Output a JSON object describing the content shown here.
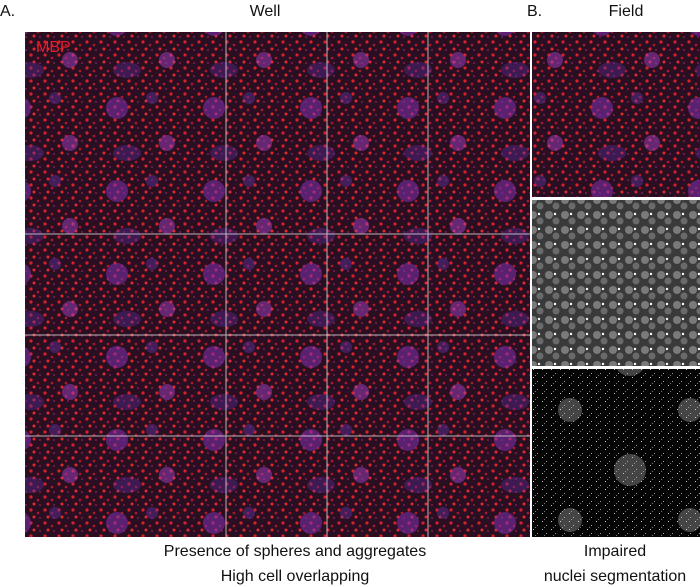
{
  "panel_a": {
    "label": "A.",
    "title": "Well",
    "stain_label": "MBP",
    "caption": [
      "Presence of spheres and aggregates",
      "High cell overlapping"
    ]
  },
  "panel_b": {
    "label": "B.",
    "title": "Field",
    "caption": [
      "Impaired",
      "nuclei segmentation"
    ]
  }
}
